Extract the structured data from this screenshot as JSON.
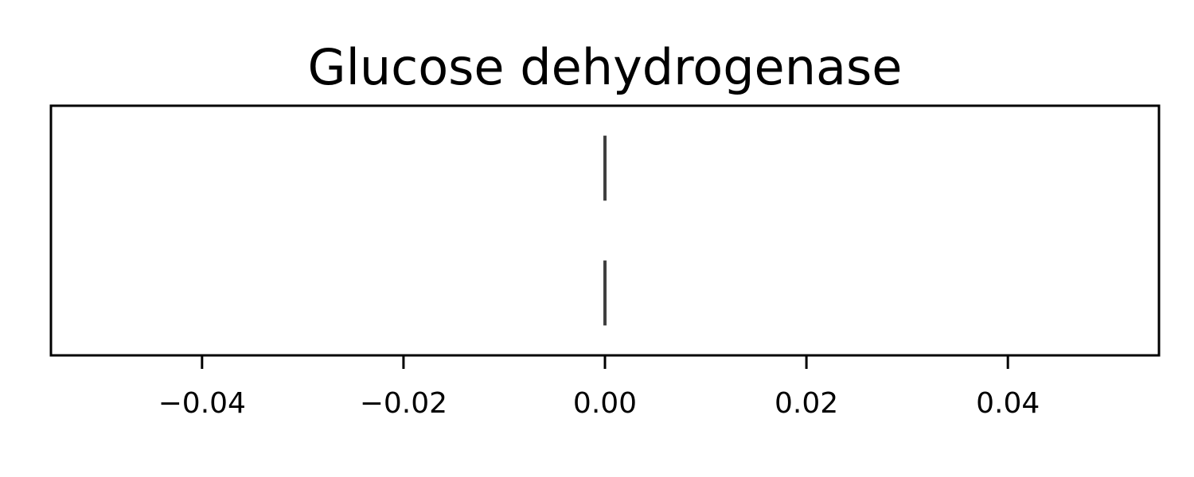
{
  "chart_data": {
    "type": "box",
    "title": "Glucose dehydrogenase",
    "xlabel": "",
    "ylabel": "",
    "xlim": [
      -0.055,
      0.055
    ],
    "x_ticks": [
      -0.04,
      -0.02,
      0.0,
      0.02,
      0.04
    ],
    "x_tick_labels": [
      "−0.04",
      "−0.02",
      "0.00",
      "0.02",
      "0.04"
    ],
    "orientation": "horizontal",
    "grid": false,
    "legend": false,
    "series": [
      {
        "min": 0.0,
        "q1": 0.0,
        "median": 0.0,
        "q3": 0.0,
        "max": 0.0
      },
      {
        "min": 0.0,
        "q1": 0.0,
        "median": 0.0,
        "q3": 0.0,
        "max": 0.0
      }
    ],
    "line_color": "#3f3f3f",
    "axis_color": "#000000"
  }
}
